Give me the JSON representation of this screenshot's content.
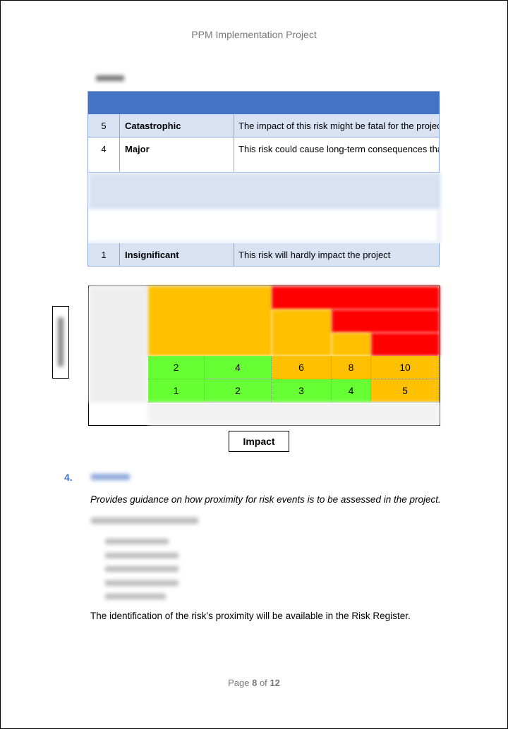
{
  "header": {
    "title": "PPM Implementation Project"
  },
  "impact_table": {
    "rows": [
      [
        "5",
        "Catastrophic",
        "The impact of this risk might be fatal for the project"
      ],
      [
        "4",
        "Major",
        "This risk could cause long-term consequences that"
      ],
      [
        "1",
        "Insignificant",
        "This risk will hardly impact the project"
      ]
    ]
  },
  "matrix": {
    "rows": [
      [
        "2",
        "4",
        "6",
        "8",
        "10"
      ],
      [
        "1",
        "2",
        "3",
        "4",
        "5"
      ]
    ],
    "axis_label": "Impact"
  },
  "section": {
    "number": "4.",
    "intro": "Provides guidance on how proximity for risk events is to be assessed in the project.",
    "closing": "The identification of the risk’s proximity will be available in the Risk Register."
  },
  "footer": {
    "page_word": "Page",
    "page": "8",
    "of_word": "of",
    "total": "12"
  }
}
